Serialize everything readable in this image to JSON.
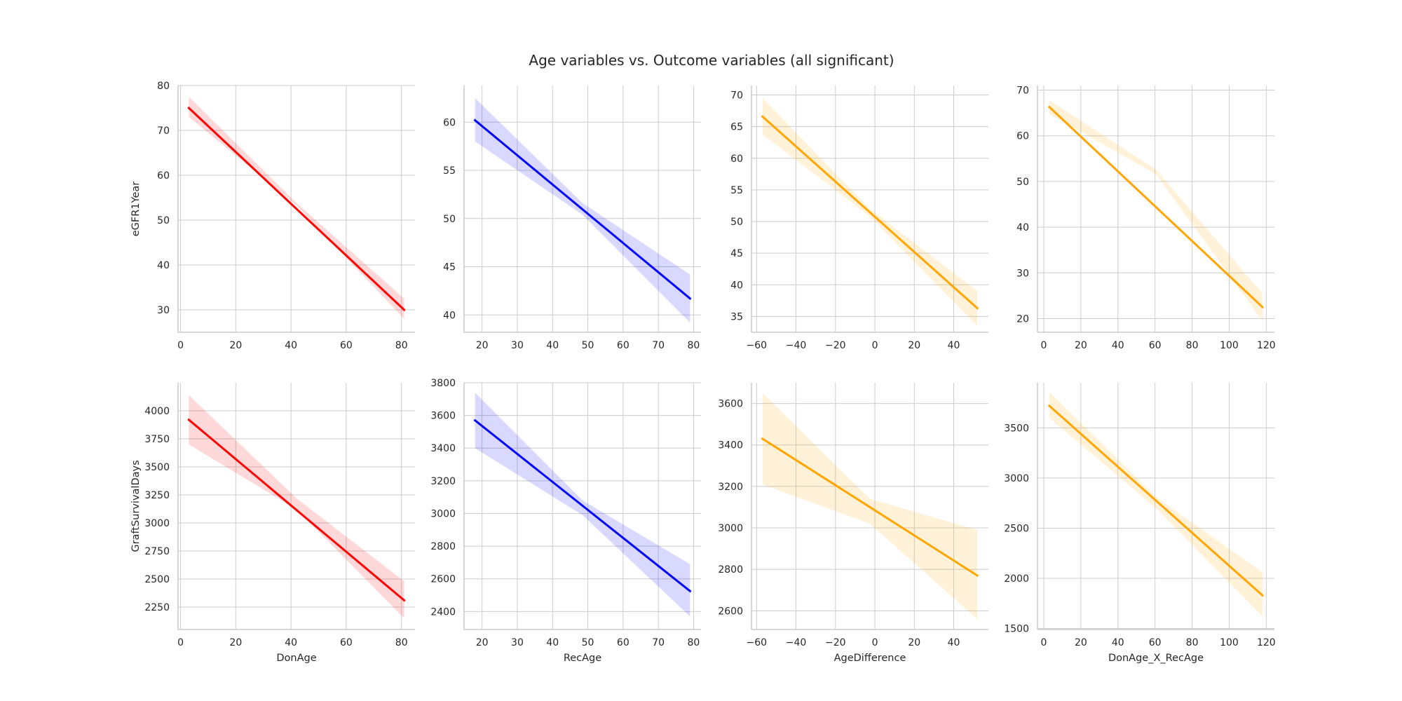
{
  "title": "Age variables vs. Outcome variables (all significant)",
  "colors": {
    "red": "#ff0000",
    "blue": "#0000ff",
    "orange": "#ffa500",
    "grid": "#cccccc",
    "spine": "#bfbfbf"
  },
  "chart_data": [
    {
      "type": "line",
      "x": "DonAge",
      "y": "eGFR1Year",
      "color": "red",
      "xlim": [
        -0.9,
        84.9
      ],
      "ylim": [
        25.0,
        80.0
      ],
      "xticks": [
        0,
        20,
        40,
        60,
        80
      ],
      "yticks": [
        30,
        40,
        50,
        60,
        70,
        80
      ],
      "points": [
        [
          3,
          75.0
        ],
        [
          81,
          30.0
        ]
      ],
      "ci_start": [
        73.0,
        77.5
      ],
      "ci_end": [
        28.0,
        32.5
      ],
      "ci_mid": [
        53.3,
        53.8
      ],
      "xlabel": "",
      "ylabel": "eGFR1Year"
    },
    {
      "type": "line",
      "x": "RecAge",
      "y": "eGFR1Year",
      "color": "blue",
      "xlim": [
        14.9,
        82.1
      ],
      "ylim": [
        38.2,
        63.8
      ],
      "xticks": [
        20,
        30,
        40,
        50,
        60,
        70,
        80
      ],
      "yticks": [
        40,
        45,
        50,
        55,
        60
      ],
      "points": [
        [
          18,
          60.2
        ],
        [
          79,
          41.7
        ]
      ],
      "ci_start": [
        58.0,
        62.5
      ],
      "ci_end": [
        39.2,
        44.2
      ],
      "ci_mid": [
        50.4,
        51.6
      ],
      "xlabel": "",
      "ylabel": ""
    },
    {
      "type": "line",
      "x": "AgeDifference",
      "y": "eGFR1Year",
      "color": "orange",
      "xlim": [
        -62.6,
        57.6
      ],
      "ylim": [
        32.5,
        71.5
      ],
      "xticks": [
        -60,
        -40,
        -20,
        0,
        20,
        40
      ],
      "yticks": [
        35,
        40,
        45,
        50,
        55,
        60,
        65,
        70
      ],
      "points": [
        [
          -57,
          66.6
        ],
        [
          52,
          36.3
        ]
      ],
      "ci_start": [
        63.8,
        69.5
      ],
      "ci_end": [
        33.5,
        39.0
      ],
      "ci_mid": [
        50.8,
        52.0
      ],
      "xlabel": "",
      "ylabel": ""
    },
    {
      "type": "line",
      "x": "DonAge_X_RecAge",
      "y": "eGFR1Year",
      "color": "orange",
      "xlim": [
        -3.4,
        124.4
      ],
      "ylim": [
        17.0,
        71.0
      ],
      "xticks": [
        0,
        20,
        40,
        60,
        80,
        100,
        120
      ],
      "yticks": [
        20,
        30,
        40,
        50,
        60,
        70
      ],
      "points": [
        [
          3,
          66.3
        ],
        [
          118,
          22.5
        ]
      ],
      "ci_start": [
        64.8,
        67.8
      ],
      "ci_end": [
        19.5,
        25.5
      ],
      "ci_mid": [
        51.6,
        52.6
      ],
      "xlabel": "",
      "ylabel": ""
    },
    {
      "type": "line",
      "x": "DonAge",
      "y": "GraftSurvivalDays",
      "color": "red",
      "xlim": [
        -0.9,
        84.9
      ],
      "ylim": [
        2050,
        4250
      ],
      "xticks": [
        0,
        20,
        40,
        60,
        80
      ],
      "yticks": [
        2250,
        2500,
        2750,
        3000,
        3250,
        3500,
        3750,
        4000
      ],
      "points": [
        [
          3,
          3920
        ],
        [
          81,
          2310
        ]
      ],
      "ci_start": [
        3700,
        4140
      ],
      "ci_end": [
        2150,
        2480
      ],
      "ci_mid": [
        3120,
        3220
      ],
      "xlabel": "DonAge",
      "ylabel": "GraftSurvivalDays"
    },
    {
      "type": "line",
      "x": "RecAge",
      "y": "GraftSurvivalDays",
      "color": "blue",
      "xlim": [
        14.9,
        82.1
      ],
      "ylim": [
        2290,
        3800
      ],
      "xticks": [
        20,
        30,
        40,
        50,
        60,
        70,
        80
      ],
      "yticks": [
        2400,
        2600,
        2800,
        3000,
        3200,
        3400,
        3600,
        3800
      ],
      "points": [
        [
          18,
          3570
        ],
        [
          79,
          2525
        ]
      ],
      "ci_start": [
        3400,
        3740
      ],
      "ci_end": [
        2370,
        2690
      ],
      "ci_mid": [
        2990,
        3080
      ],
      "xlabel": "RecAge",
      "ylabel": ""
    },
    {
      "type": "line",
      "x": "AgeDifference",
      "y": "GraftSurvivalDays",
      "color": "orange",
      "xlim": [
        -62.6,
        57.6
      ],
      "ylim": [
        2510,
        3700
      ],
      "xticks": [
        -60,
        -40,
        -20,
        0,
        20,
        40
      ],
      "yticks": [
        2600,
        2800,
        3000,
        3200,
        3400,
        3600
      ],
      "points": [
        [
          -57,
          3430
        ],
        [
          52,
          2770
        ]
      ],
      "ci_start": [
        3210,
        3650
      ],
      "ci_end": [
        2560,
        2990
      ],
      "ci_mid": [
        3020,
        3140
      ],
      "xlabel": "AgeDifference",
      "ylabel": ""
    },
    {
      "type": "line",
      "x": "DonAge_X_RecAge",
      "y": "GraftSurvivalDays",
      "color": "orange",
      "xlim": [
        -3.4,
        124.4
      ],
      "ylim": [
        1490,
        3950
      ],
      "xticks": [
        0,
        20,
        40,
        60,
        80,
        100,
        120
      ],
      "yticks": [
        1500,
        2000,
        2500,
        3000,
        3500
      ],
      "points": [
        [
          3,
          3720
        ],
        [
          118,
          1830
        ]
      ],
      "ci_start": [
        3600,
        3860
      ],
      "ci_end": [
        1620,
        2060
      ],
      "ci_mid": [
        2700,
        2810
      ],
      "xlabel": "DonAge_X_RecAge",
      "ylabel": ""
    }
  ]
}
